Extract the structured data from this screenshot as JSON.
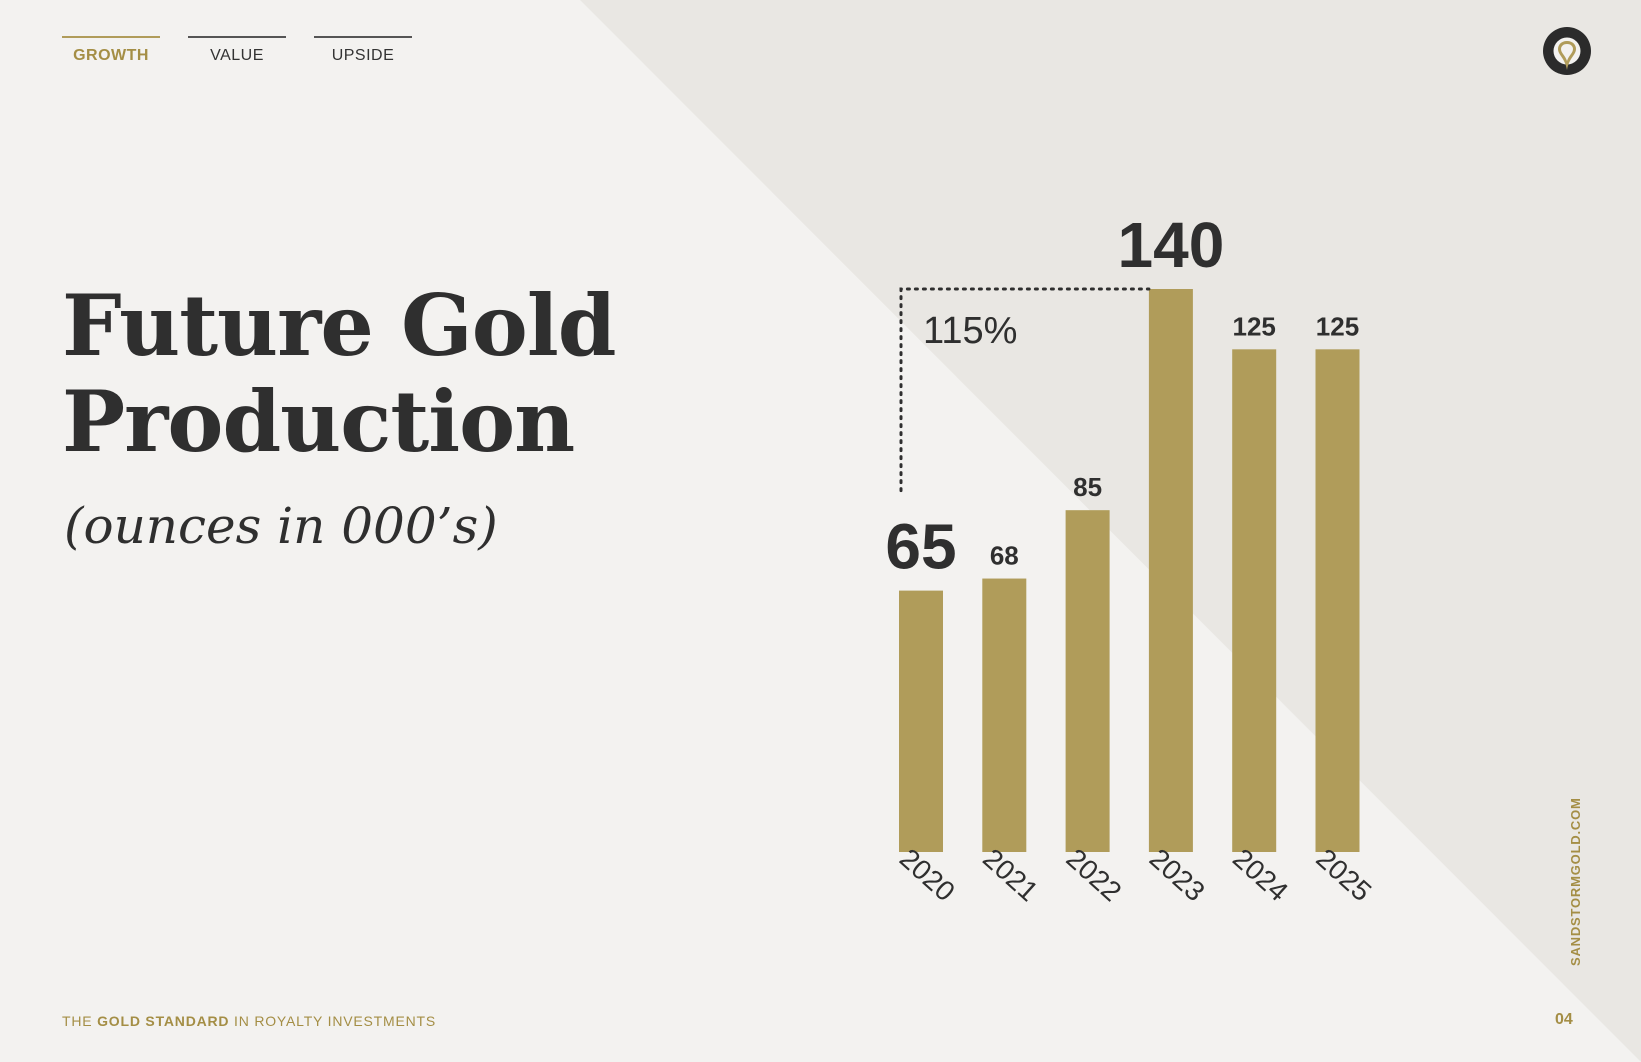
{
  "tabs": [
    {
      "label": "GROWTH",
      "active": true
    },
    {
      "label": "VALUE",
      "active": false
    },
    {
      "label": "UPSIDE",
      "active": false
    }
  ],
  "logo": {
    "icon": "gold-drop-ring-icon"
  },
  "title": {
    "line1": "Future Gold",
    "line2": "Production"
  },
  "subtitle": "(ounces in 000’s)",
  "chart_data": {
    "type": "bar",
    "categories": [
      "2020",
      "2021",
      "2022",
      "2023",
      "2024",
      "2025"
    ],
    "values": [
      65,
      68,
      85,
      140,
      125,
      125
    ],
    "data_labels": [
      "65",
      "68",
      "85",
      "140",
      "125",
      "125"
    ],
    "ylim": [
      0,
      140
    ],
    "grid": false,
    "annotation": {
      "label": "115%",
      "from": "2020",
      "to": "2023"
    }
  },
  "footer": {
    "tagline_pre": "THE ",
    "tagline_bold": "GOLD STANDARD",
    "tagline_post": " IN ROYALTY INVESTMENTS",
    "website": "SANDSTORMGOLD.COM",
    "page": "04"
  },
  "colors": {
    "gold": "#b09c5a",
    "gold_text": "#a48e45",
    "background": "#f3f2f0",
    "background_panel": "#e9e7e3",
    "dark": "#2f2f2f"
  }
}
